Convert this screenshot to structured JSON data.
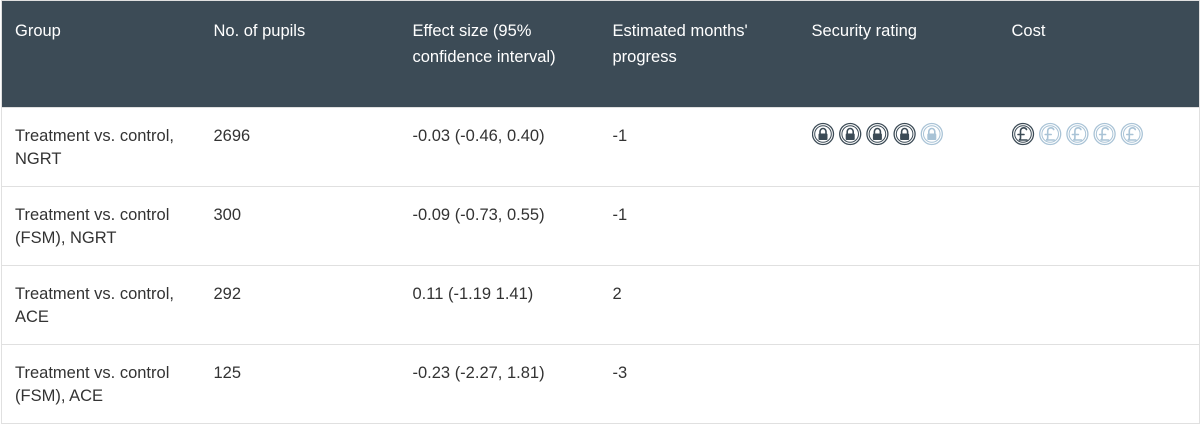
{
  "header": {
    "columns": [
      "Group",
      "No. of pupils",
      "Effect size (95% confidence interval)",
      "Estimated months' progress",
      "Security rating",
      "Cost"
    ]
  },
  "table": {
    "icon_scale": 5,
    "rows": [
      {
        "group": "Treatment vs. control, NGRT",
        "pupils": 2696,
        "effect_size": "-0.03 (-0.46, 0.40)",
        "months_progress": -1,
        "security_rating": 4,
        "cost": 1
      },
      {
        "group": "Treatment vs. control (FSM), NGRT",
        "pupils": 300,
        "effect_size": "-0.09 (-0.73, 0.55)",
        "months_progress": -1
      },
      {
        "group": "Treatment vs. control, ACE",
        "pupils": 292,
        "effect_size": "0.11 (-1.19 1.41)",
        "months_progress": 2
      },
      {
        "group": "Treatment vs. control (FSM), ACE",
        "pupils": 125,
        "effect_size": "-0.23 (-2.27, 1.81)",
        "months_progress": -3
      }
    ]
  }
}
